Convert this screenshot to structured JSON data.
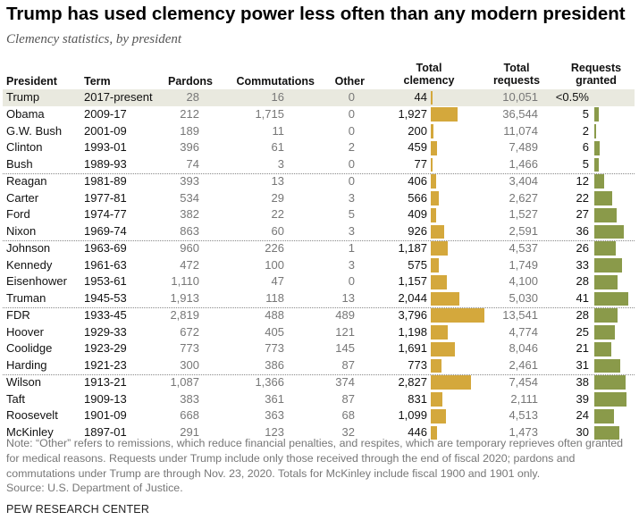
{
  "title": "Trump has used clemency power less often than any modern president",
  "subtitle": "Clemency statistics, by president",
  "headers": {
    "president": "President",
    "term": "Term",
    "pardons": "Pardons",
    "commutations": "Commutations",
    "other": "Other",
    "total_clemency_1": "Total",
    "total_clemency_2": "clemency",
    "total_requests_1": "Total",
    "total_requests_2": "requests",
    "requests_granted_1": "Requests",
    "requests_granted_2": "granted"
  },
  "chart_data": {
    "type": "table",
    "title": "Trump has used clemency power less often than any modern president",
    "subtitle": "Clemency statistics, by president",
    "columns": [
      "President",
      "Term",
      "Pardons",
      "Commutations",
      "Other",
      "Total clemency",
      "Total requests",
      "Requests granted"
    ],
    "colors": {
      "total_clemency_bar": "#d4a83c",
      "requests_granted_bar": "#8a9a4a",
      "highlight_row": "#e9e9df"
    },
    "bar_scales": {
      "total_clemency_max": 3796,
      "requests_granted_max": 41
    },
    "rows": [
      {
        "president": "Trump",
        "term": "2017-present",
        "pardons": "28",
        "commutations": "16",
        "other": "0",
        "total_clemency": "44",
        "total_clemency_value": 44,
        "total_requests": "10,051",
        "requests_granted": "<0.5%",
        "requests_granted_value": 0,
        "highlight": true
      },
      {
        "president": "Obama",
        "term": "2009-17",
        "pardons": "212",
        "commutations": "1,715",
        "other": "0",
        "total_clemency": "1,927",
        "total_clemency_value": 1927,
        "total_requests": "36,544",
        "requests_granted": "5",
        "requests_granted_value": 5
      },
      {
        "president": "G.W. Bush",
        "term": "2001-09",
        "pardons": "189",
        "commutations": "11",
        "other": "0",
        "total_clemency": "200",
        "total_clemency_value": 200,
        "total_requests": "11,074",
        "requests_granted": "2",
        "requests_granted_value": 2
      },
      {
        "president": "Clinton",
        "term": "1993-01",
        "pardons": "396",
        "commutations": "61",
        "other": "2",
        "total_clemency": "459",
        "total_clemency_value": 459,
        "total_requests": "7,489",
        "requests_granted": "6",
        "requests_granted_value": 6
      },
      {
        "president": "Bush",
        "term": "1989-93",
        "pardons": "74",
        "commutations": "3",
        "other": "0",
        "total_clemency": "77",
        "total_clemency_value": 77,
        "total_requests": "1,466",
        "requests_granted": "5",
        "requests_granted_value": 5,
        "sep_after": true
      },
      {
        "president": "Reagan",
        "term": "1981-89",
        "pardons": "393",
        "commutations": "13",
        "other": "0",
        "total_clemency": "406",
        "total_clemency_value": 406,
        "total_requests": "3,404",
        "requests_granted": "12",
        "requests_granted_value": 12
      },
      {
        "president": "Carter",
        "term": "1977-81",
        "pardons": "534",
        "commutations": "29",
        "other": "3",
        "total_clemency": "566",
        "total_clemency_value": 566,
        "total_requests": "2,627",
        "requests_granted": "22",
        "requests_granted_value": 22
      },
      {
        "president": "Ford",
        "term": "1974-77",
        "pardons": "382",
        "commutations": "22",
        "other": "5",
        "total_clemency": "409",
        "total_clemency_value": 409,
        "total_requests": "1,527",
        "requests_granted": "27",
        "requests_granted_value": 27
      },
      {
        "president": "Nixon",
        "term": "1969-74",
        "pardons": "863",
        "commutations": "60",
        "other": "3",
        "total_clemency": "926",
        "total_clemency_value": 926,
        "total_requests": "2,591",
        "requests_granted": "36",
        "requests_granted_value": 36,
        "sep_after": true
      },
      {
        "president": "Johnson",
        "term": "1963-69",
        "pardons": "960",
        "commutations": "226",
        "other": "1",
        "total_clemency": "1,187",
        "total_clemency_value": 1187,
        "total_requests": "4,537",
        "requests_granted": "26",
        "requests_granted_value": 26
      },
      {
        "president": "Kennedy",
        "term": "1961-63",
        "pardons": "472",
        "commutations": "100",
        "other": "3",
        "total_clemency": "575",
        "total_clemency_value": 575,
        "total_requests": "1,749",
        "requests_granted": "33",
        "requests_granted_value": 33
      },
      {
        "president": "Eisenhower",
        "term": "1953-61",
        "pardons": "1,110",
        "commutations": "47",
        "other": "0",
        "total_clemency": "1,157",
        "total_clemency_value": 1157,
        "total_requests": "4,100",
        "requests_granted": "28",
        "requests_granted_value": 28
      },
      {
        "president": "Truman",
        "term": "1945-53",
        "pardons": "1,913",
        "commutations": "118",
        "other": "13",
        "total_clemency": "2,044",
        "total_clemency_value": 2044,
        "total_requests": "5,030",
        "requests_granted": "41",
        "requests_granted_value": 41,
        "sep_after": true
      },
      {
        "president": "FDR",
        "term": "1933-45",
        "pardons": "2,819",
        "commutations": "488",
        "other": "489",
        "total_clemency": "3,796",
        "total_clemency_value": 3796,
        "total_requests": "13,541",
        "requests_granted": "28",
        "requests_granted_value": 28
      },
      {
        "president": "Hoover",
        "term": "1929-33",
        "pardons": "672",
        "commutations": "405",
        "other": "121",
        "total_clemency": "1,198",
        "total_clemency_value": 1198,
        "total_requests": "4,774",
        "requests_granted": "25",
        "requests_granted_value": 25
      },
      {
        "president": "Coolidge",
        "term": "1923-29",
        "pardons": "773",
        "commutations": "773",
        "other": "145",
        "total_clemency": "1,691",
        "total_clemency_value": 1691,
        "total_requests": "8,046",
        "requests_granted": "21",
        "requests_granted_value": 21
      },
      {
        "president": "Harding",
        "term": "1921-23",
        "pardons": "300",
        "commutations": "386",
        "other": "87",
        "total_clemency": "773",
        "total_clemency_value": 773,
        "total_requests": "2,461",
        "requests_granted": "31",
        "requests_granted_value": 31,
        "sep_after": true
      },
      {
        "president": "Wilson",
        "term": "1913-21",
        "pardons": "1,087",
        "commutations": "1,366",
        "other": "374",
        "total_clemency": "2,827",
        "total_clemency_value": 2827,
        "total_requests": "7,454",
        "requests_granted": "38",
        "requests_granted_value": 38
      },
      {
        "president": "Taft",
        "term": "1909-13",
        "pardons": "383",
        "commutations": "361",
        "other": "87",
        "total_clemency": "831",
        "total_clemency_value": 831,
        "total_requests": "2,111",
        "requests_granted": "39",
        "requests_granted_value": 39
      },
      {
        "president": "Roosevelt",
        "term": "1901-09",
        "pardons": "668",
        "commutations": "363",
        "other": "68",
        "total_clemency": "1,099",
        "total_clemency_value": 1099,
        "total_requests": "4,513",
        "requests_granted": "24",
        "requests_granted_value": 24
      },
      {
        "president": "McKinley",
        "term": "1897-01",
        "pardons": "291",
        "commutations": "123",
        "other": "32",
        "total_clemency": "446",
        "total_clemency_value": 446,
        "total_requests": "1,473",
        "requests_granted": "30",
        "requests_granted_value": 30
      }
    ]
  },
  "note": "Note: “Other” refers to remissions, which reduce financial penalties, and respites, which are temporary reprieves often granted for medical reasons. Requests under Trump include only those received through the end of fiscal 2020; pardons and commutations under Trump are through Nov. 23, 2020. Totals for McKinley include fiscal 1900 and 1901 only.",
  "source": "Source: U.S. Department of Justice.",
  "brand": "PEW RESEARCH CENTER"
}
